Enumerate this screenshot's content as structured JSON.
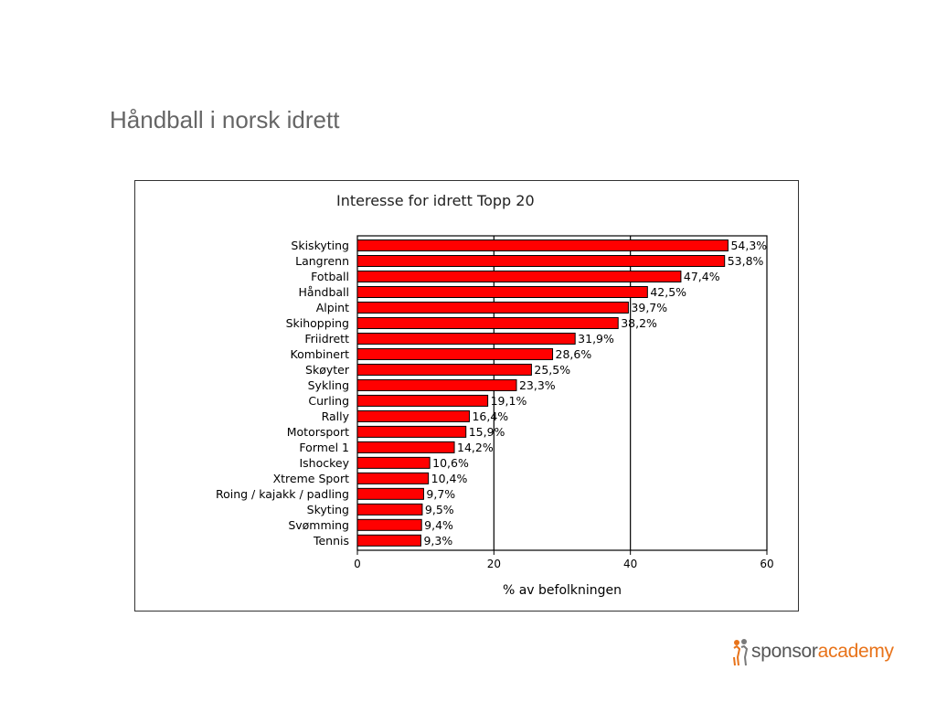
{
  "slide": {
    "title": "Håndball i norsk idrett"
  },
  "logo": {
    "part1": "sponsor",
    "part2": "academy",
    "colors": {
      "part1": "#555555",
      "part2": "#e8731a"
    }
  },
  "chart_data": {
    "type": "bar",
    "orientation": "horizontal",
    "title": "Interesse for idrett  Topp 20",
    "xlabel": "% av befolkningen",
    "ylabel": "",
    "xlim": [
      0,
      60
    ],
    "xticks": [
      0,
      20,
      40,
      60
    ],
    "grid": "vertical",
    "bar_color": "#ff0000",
    "categories": [
      "Skiskyting",
      "Langrenn",
      "Fotball",
      "Håndball",
      "Alpint",
      "Skihopping",
      "Friidrett",
      "Kombinert",
      "Skøyter",
      "Sykling",
      "Curling",
      "Rally",
      "Motorsport",
      "Formel 1",
      "Ishockey",
      "Xtreme Sport",
      "Roing / kajakk / padling",
      "Skyting",
      "Svømming",
      "Tennis"
    ],
    "values": [
      54.3,
      53.8,
      47.4,
      42.5,
      39.7,
      38.2,
      31.9,
      28.6,
      25.5,
      23.3,
      19.1,
      16.4,
      15.9,
      14.2,
      10.6,
      10.4,
      9.7,
      9.5,
      9.4,
      9.3
    ],
    "data_labels": [
      "54,3%",
      "53,8%",
      "47,4%",
      "42,5%",
      "39,7%",
      "38,2%",
      "31,9%",
      "28,6%",
      "25,5%",
      "23,3%",
      "19,1%",
      "16,4%",
      "15,9%",
      "14,2%",
      "10,6%",
      "10,4%",
      "9,7%",
      "9,5%",
      "9,4%",
      "9,3%"
    ]
  }
}
